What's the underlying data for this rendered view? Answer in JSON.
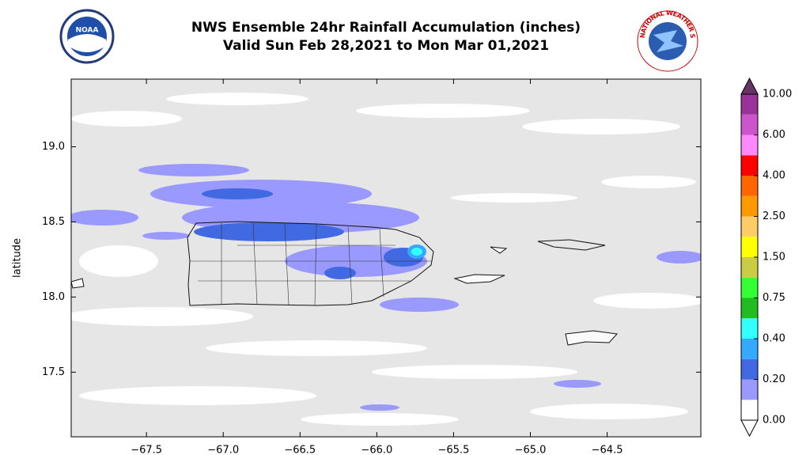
{
  "chart_data": {
    "type": "map",
    "title": "NWS Ensemble 24hr Rainfall Accumulation (inches)",
    "subtitle": "Valid Sun Feb 28,2021 to Mon Mar 01,2021",
    "logos": {
      "left": "NOAA",
      "right": "NATIONAL WEATHER SERVICE"
    },
    "y_label": "latitude",
    "xlim": [
      -67.99,
      -63.89
    ],
    "ylim": [
      17.07,
      19.45
    ],
    "xticks": [
      {
        "value": -67.5,
        "label": "−67.5"
      },
      {
        "value": -67.0,
        "label": "−67.0"
      },
      {
        "value": -66.5,
        "label": "−66.5"
      },
      {
        "value": -66.0,
        "label": "−66.0"
      },
      {
        "value": -65.5,
        "label": "−65.5"
      },
      {
        "value": -65.0,
        "label": "−65.0"
      },
      {
        "value": -64.5,
        "label": "−64.5"
      }
    ],
    "yticks": [
      {
        "value": 17.5,
        "label": "17.5"
      },
      {
        "value": 18.0,
        "label": "18.0"
      },
      {
        "value": 18.5,
        "label": "18.5"
      },
      {
        "value": 19.0,
        "label": "19.0"
      }
    ],
    "colorbar": {
      "boundaries": [
        0,
        0.1,
        0.2,
        0.3,
        0.4,
        0.5,
        0.75,
        1.0,
        1.5,
        2.0,
        2.5,
        3.0,
        4.0,
        5.0,
        6.0,
        8.0,
        10.0
      ],
      "colors": [
        "#ffffff",
        "#9999ff",
        "#4169e1",
        "#33aaff",
        "#33ffff",
        "#22bb22",
        "#33ff33",
        "#cccc44",
        "#ffff00",
        "#ffcc66",
        "#ff9900",
        "#ff6600",
        "#ff0000",
        "#ff88ff",
        "#cc55cc",
        "#993399"
      ],
      "extend_min_color": "#ffffff",
      "extend_max_color": "#663366",
      "ticks": [
        {
          "value": 0,
          "label": "0.00"
        },
        {
          "value": 0.2,
          "label": "0.20"
        },
        {
          "value": 0.4,
          "label": "0.40"
        },
        {
          "value": 0.75,
          "label": "0.75"
        },
        {
          "value": 1.5,
          "label": "1.50"
        },
        {
          "value": 2.5,
          "label": "2.50"
        },
        {
          "value": 4.0,
          "label": "4.00"
        },
        {
          "value": 6.0,
          "label": "6.00"
        },
        {
          "value": 10.0,
          "label": "10.00"
        }
      ]
    }
  }
}
